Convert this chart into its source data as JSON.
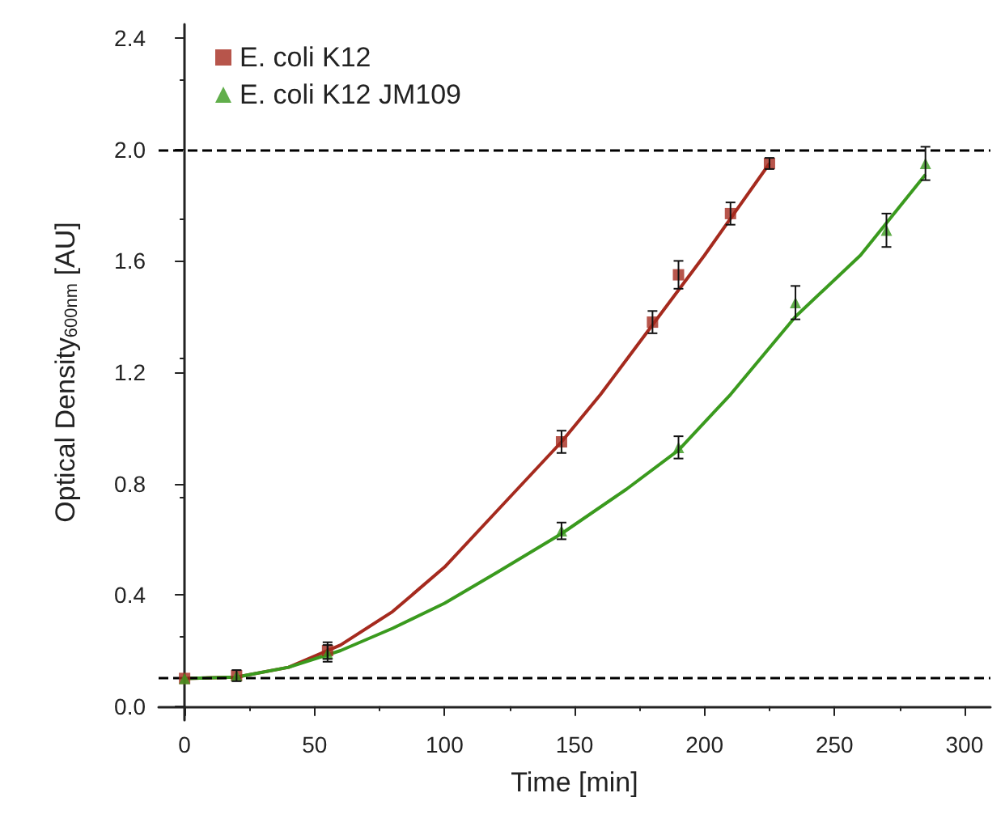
{
  "chart_data": {
    "type": "scatter",
    "xlabel": "Time [min]",
    "ylabel": "Optical Density$_{600nm}$ [AU]",
    "xlim": [
      -10,
      310
    ],
    "xticks": [
      0,
      50,
      100,
      150,
      200,
      250,
      300
    ],
    "ylim": [
      -0.05,
      2.45
    ],
    "yticks": [
      {
        "value": 0,
        "label": "0.0"
      },
      {
        "value": 0.4,
        "label": "0.4"
      },
      {
        "value": 0.8,
        "label": "0.8"
      },
      {
        "value": 1.2,
        "label": "1.2"
      },
      {
        "value": 1.6,
        "label": "1.6"
      },
      {
        "value": 2,
        "label": "2.0"
      },
      {
        "value": 2.4,
        "label": "2.4"
      }
    ],
    "grid": false,
    "legend": "top left",
    "ref_lines": [
      {
        "axis": "y",
        "value": 2.0,
        "color": "#000000",
        "line_style": "dashed"
      },
      {
        "axis": "y",
        "value": 0.1,
        "color": "#000000",
        "line_style": "dashed"
      }
    ],
    "series": [
      {
        "name": "E. coli K12",
        "marker": "square",
        "color": "#a52a1e",
        "x": [
          0,
          20,
          55,
          145,
          180,
          190,
          210,
          225
        ],
        "values": [
          0.1,
          0.11,
          0.2,
          0.95,
          1.38,
          1.55,
          1.77,
          1.95
        ],
        "errors": [
          null,
          0.02,
          0.03,
          0.04,
          0.04,
          0.05,
          0.04,
          0.02
        ]
      },
      {
        "name": "E. coli K12 JM109",
        "marker": "triangle",
        "color": "#3a9a1e",
        "x": [
          0,
          20,
          55,
          145,
          190,
          235,
          270,
          285
        ],
        "values": [
          0.1,
          0.11,
          0.19,
          0.63,
          0.93,
          1.45,
          1.71,
          1.95
        ],
        "errors": [
          null,
          null,
          0.03,
          0.03,
          0.04,
          0.06,
          0.06,
          0.06
        ]
      },
      {
        "type": "line",
        "marker": "none",
        "color": "#a52a1e",
        "x": [
          0,
          20,
          40,
          60,
          80,
          100,
          120,
          145,
          160,
          180,
          200,
          225
        ],
        "values": [
          0.1,
          0.105,
          0.14,
          0.22,
          0.34,
          0.5,
          0.7,
          0.95,
          1.12,
          1.37,
          1.62,
          1.95
        ]
      },
      {
        "type": "line",
        "marker": "none",
        "color": "#3a9a1e",
        "x": [
          0,
          20,
          40,
          60,
          80,
          100,
          120,
          145,
          170,
          190,
          210,
          235,
          260,
          285
        ],
        "values": [
          0.1,
          0.105,
          0.14,
          0.2,
          0.28,
          0.37,
          0.48,
          0.62,
          0.78,
          0.92,
          1.12,
          1.4,
          1.62,
          1.91
        ]
      }
    ]
  }
}
